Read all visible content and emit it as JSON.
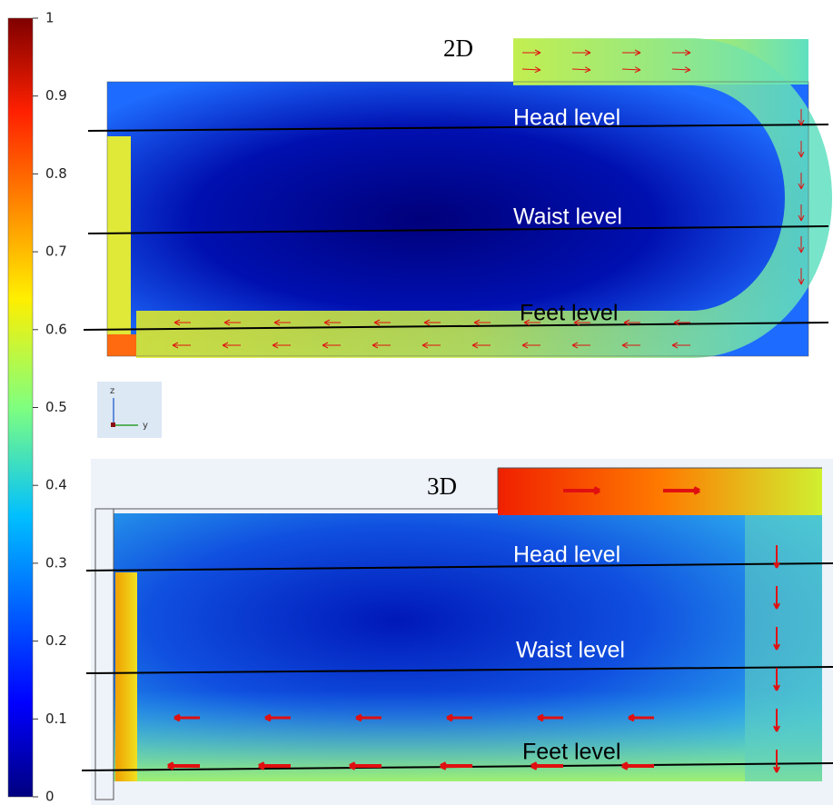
{
  "colorbar": {
    "range": [
      0,
      1
    ],
    "ticks": [
      0,
      0.1,
      0.2,
      0.3,
      0.4,
      0.5,
      0.6,
      0.7,
      0.8,
      0.9,
      1
    ]
  },
  "panels": [
    {
      "label": "2D",
      "levels": [
        "Head level",
        "Waist level",
        "Feet level"
      ],
      "axes": [
        "z",
        "y"
      ]
    },
    {
      "label": "3D",
      "levels": [
        "Head level",
        "Waist level",
        "Feet level"
      ]
    }
  ]
}
